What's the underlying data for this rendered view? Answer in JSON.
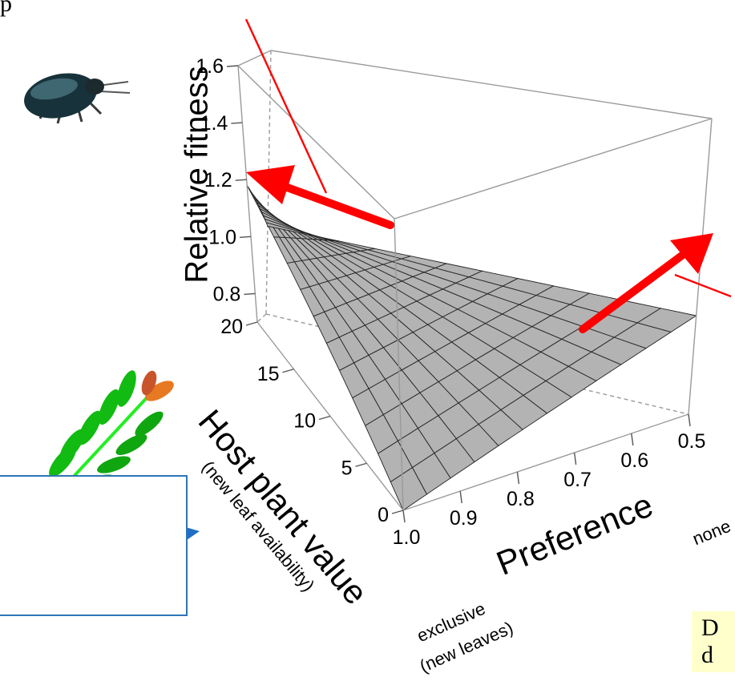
{
  "top_fragment": "p",
  "chart_data": {
    "type": "surface3d",
    "zlabel": "Relative fitness",
    "zticks": [
      "0.8",
      "1.0",
      "1.2",
      "1.4",
      "1.6"
    ],
    "zlim": [
      0.7,
      1.6
    ],
    "xlabel": "Host plant value",
    "xsublabel": "(new leaf availability)",
    "xticks": [
      "0",
      "5",
      "10",
      "15",
      "20"
    ],
    "xlim": [
      0,
      20
    ],
    "ylabel": "Preference",
    "yticks": [
      "1.0",
      "0.9",
      "0.8",
      "0.7",
      "0.6",
      "0.5"
    ],
    "ylim": [
      1.0,
      0.5
    ],
    "surface_corners": [
      {
        "host_value": 0,
        "preference": 1.0,
        "fitness": 0.7
      },
      {
        "host_value": 20,
        "preference": 1.0,
        "fitness": 1.18
      },
      {
        "host_value": 20,
        "preference": 0.5,
        "fitness": 1.0
      },
      {
        "host_value": 0,
        "preference": 0.5,
        "fitness": 1.0
      }
    ],
    "grid_divisions": 12,
    "surface_color": "#b3b3b3",
    "arrow_color": "#ff0000",
    "pointer_color": "#1f6fc5"
  },
  "preference_ends": {
    "left_line1": "exclusive",
    "left_line2": "(new leaves)",
    "right": "none"
  },
  "note_fragment": {
    "line1": "D",
    "line2": "d"
  },
  "images": {
    "beetle": "beetle-icon",
    "plant": "leafy-shoot-icon"
  }
}
